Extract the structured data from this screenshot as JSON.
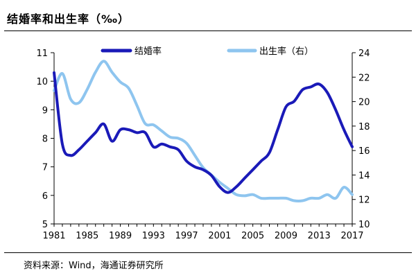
{
  "title": "结婚率和出生率（‰）",
  "source": "资料来源：Wind，海通证券研究所",
  "chart_data": {
    "type": "line",
    "x": [
      1981,
      1982,
      1983,
      1984,
      1985,
      1986,
      1987,
      1988,
      1989,
      1990,
      1991,
      1992,
      1993,
      1994,
      1995,
      1996,
      1997,
      1998,
      1999,
      2000,
      2001,
      2002,
      2003,
      2004,
      2005,
      2006,
      2007,
      2008,
      2009,
      2010,
      2011,
      2012,
      2013,
      2014,
      2015,
      2016,
      2017
    ],
    "series": [
      {
        "name": "结婚率",
        "axis": "left",
        "color": "#1a1ab8",
        "values": [
          10.3,
          7.8,
          7.4,
          7.6,
          7.9,
          8.2,
          8.5,
          7.9,
          8.3,
          8.3,
          8.2,
          8.2,
          7.7,
          7.8,
          7.7,
          7.6,
          7.2,
          7.0,
          6.9,
          6.7,
          6.3,
          6.1,
          6.3,
          6.6,
          6.9,
          7.2,
          7.5,
          8.3,
          9.1,
          9.3,
          9.7,
          9.8,
          9.9,
          9.6,
          9.0,
          8.3,
          7.7
        ]
      },
      {
        "name": "出生率（右）",
        "axis": "right",
        "color": "#8ec5ef",
        "values": [
          20.9,
          22.3,
          20.2,
          19.9,
          21.0,
          22.4,
          23.3,
          22.4,
          21.6,
          21.1,
          19.7,
          18.2,
          18.1,
          17.6,
          17.1,
          17.0,
          16.6,
          15.6,
          14.6,
          14.0,
          13.4,
          12.9,
          12.4,
          12.3,
          12.4,
          12.1,
          12.1,
          12.1,
          12.1,
          11.9,
          11.9,
          12.1,
          12.1,
          12.4,
          12.1,
          13.0,
          12.4
        ]
      }
    ],
    "legend": [
      "结婚率",
      "出生率（右）"
    ],
    "left_axis": {
      "min": 5,
      "max": 11,
      "ticks": [
        "5",
        "6",
        "7",
        "8",
        "9",
        "10",
        "11"
      ]
    },
    "right_axis": {
      "min": 10,
      "max": 24,
      "ticks": [
        "10",
        "12",
        "14",
        "16",
        "18",
        "20",
        "22",
        "24"
      ]
    },
    "x_ticks": [
      "1981",
      "1985",
      "1989",
      "1993",
      "1997",
      "2001",
      "2005",
      "2009",
      "2013",
      "2017"
    ]
  }
}
